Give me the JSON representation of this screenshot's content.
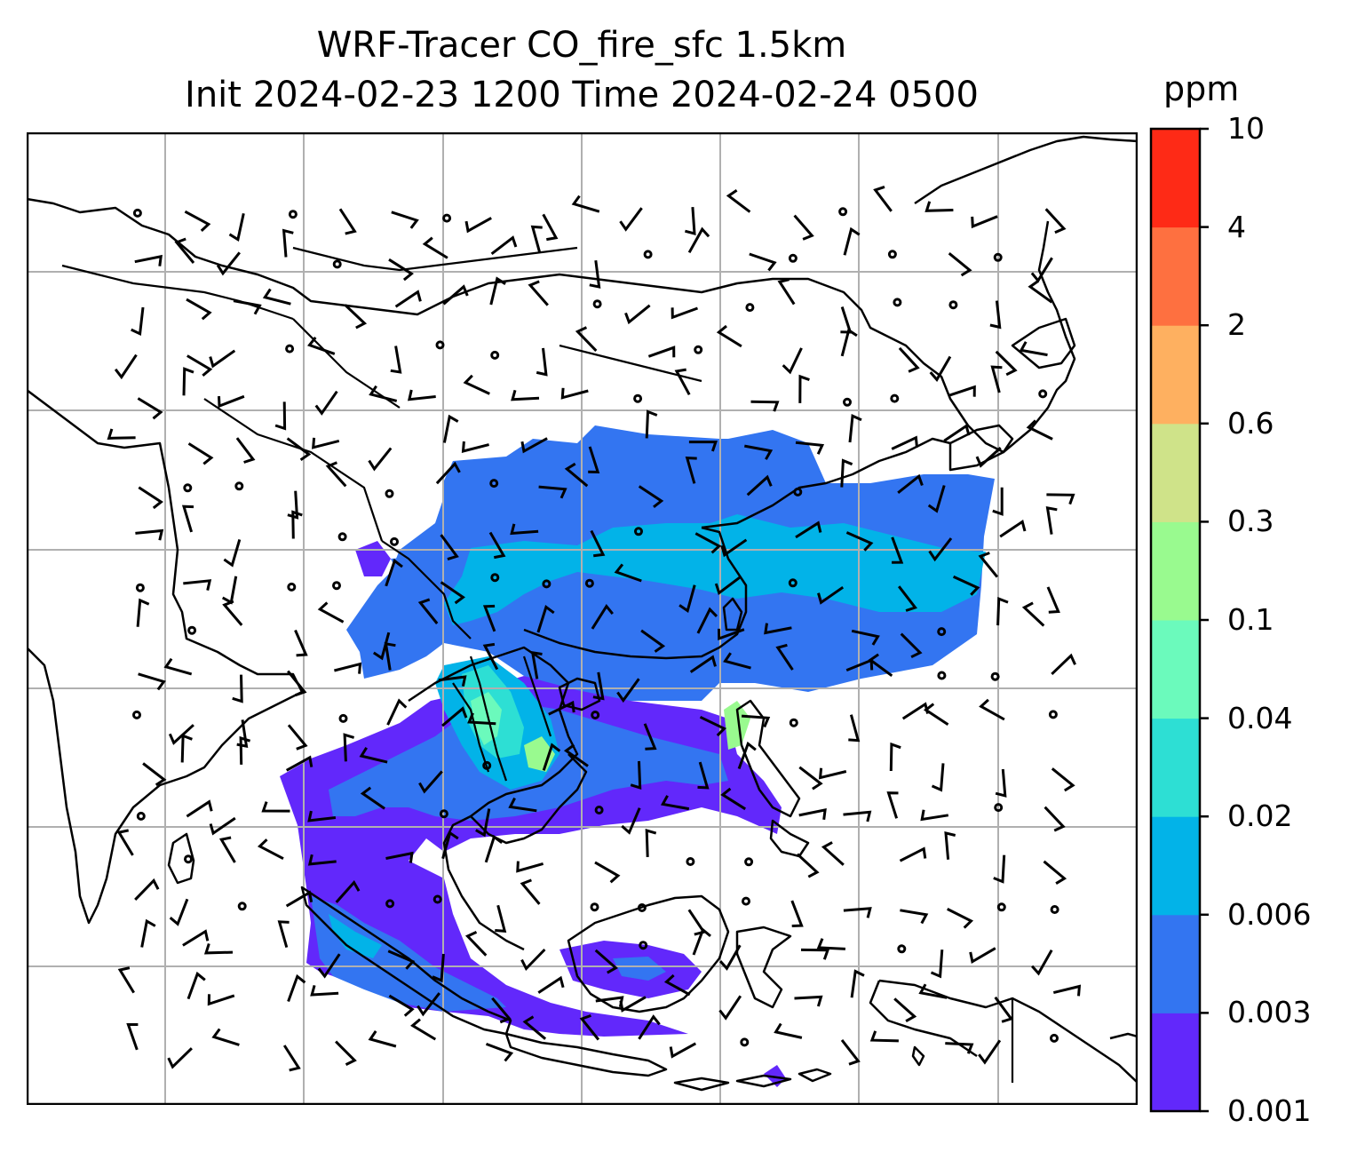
{
  "title": {
    "line1": "WRF-Tracer CO_fire_sfc 1.5km",
    "line2": "Init 2024-02-23 1200 Time 2024-02-24 0500"
  },
  "colorbar": {
    "unit": "ppm",
    "ticks": [
      "0.001",
      "0.003",
      "0.006",
      "0.02",
      "0.04",
      "0.1",
      "0.3",
      "0.6",
      "2",
      "4",
      "10"
    ],
    "colors": [
      "#6228fb",
      "#3375f1",
      "#02b3e8",
      "#2ddfd4",
      "#6bfabc",
      "#99fa8f",
      "#cfe389",
      "#feb060",
      "#fe7040",
      "#fe2a16"
    ]
  },
  "map": {
    "features": [
      "coastlines",
      "country-borders",
      "gridlines",
      "co-concentration-fill",
      "wind-barbs"
    ],
    "gridline_color": "#b0b0b0"
  }
}
